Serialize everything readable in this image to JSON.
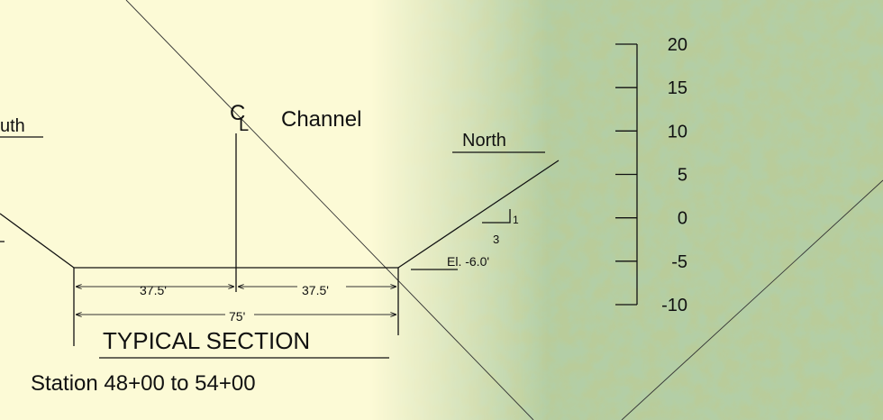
{
  "drawing": {
    "south_label": "uth",
    "centerline_c": "C",
    "centerline_l": "L",
    "channel_label": "Channel",
    "north_label": "North",
    "slope_rise": "1",
    "slope_run": "3",
    "elevation_label": "El. -6.0'",
    "dim_left": "37.5'",
    "dim_right": "37.5'",
    "dim_total": "75'",
    "title": "TYPICAL SECTION",
    "subtitle": "Station 48+00 to 54+00"
  },
  "scale": {
    "ylim": [
      -10,
      20
    ],
    "ticks": [
      20,
      15,
      10,
      5,
      0,
      -5,
      -10
    ]
  }
}
